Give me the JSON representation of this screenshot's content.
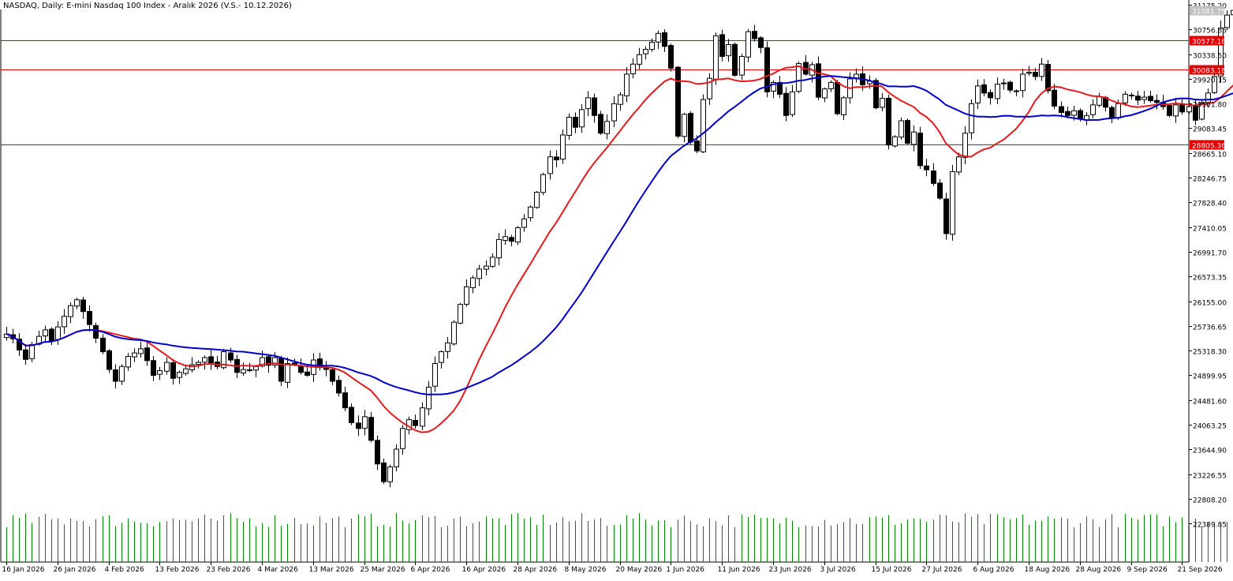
{
  "chart_data": {
    "type": "candlestick",
    "title": "NASDAQ, Daily:  E-mini Nasdaq 100 Index - Aralık 2026 (V.S.- 10.12.2026)",
    "ylim": [
      22180,
      31175.2
    ],
    "y_ticks": [
      "31175.20",
      "30756.85",
      "30338.50",
      "29920.15",
      "29501.80",
      "29083.45",
      "28665.10",
      "28246.75",
      "27828.40",
      "27410.05",
      "26991.70",
      "26573.35",
      "26155.00",
      "25736.65",
      "25318.30",
      "24899.95",
      "24481.60",
      "24063.25",
      "23644.90",
      "23226.55",
      "22808.20",
      "22389.85"
    ],
    "x_labels": [
      "16 Jan 2026",
      "26 Jan 2026",
      "4 Feb 2026",
      "13 Feb 2026",
      "23 Feb 2026",
      "4 Mar 2026",
      "13 Mar 2026",
      "25 Mar 2026",
      "6 Apr 2026",
      "16 Apr 2026",
      "28 Apr 2026",
      "8 May 2026",
      "20 May 2026",
      "1 Jun 2026",
      "11 Jun 2026",
      "23 Jun 2026",
      "3 Jul 2026",
      "15 Jul 2026",
      "27 Jul 2026",
      "6 Aug 2026",
      "18 Aug 2026",
      "28 Aug 2026",
      "9 Sep 2026",
      "21 Sep 2026"
    ],
    "x_label_bars": [
      0,
      8,
      16,
      24,
      32,
      40,
      48,
      56,
      64,
      72,
      80,
      88,
      96,
      104,
      112,
      120,
      128,
      136,
      144,
      152,
      160,
      168,
      176,
      184
    ],
    "levels": [
      {
        "value": 30577.16,
        "label": "30577.16"
      },
      {
        "value": 30083.18,
        "label": "30083.18"
      },
      {
        "value": 28805.36,
        "label": "28805.36"
      }
    ],
    "current_price": {
      "value": 31081.75,
      "label": "31081.75"
    },
    "closes": [
      25600,
      25520,
      25330,
      25170,
      25420,
      25560,
      25670,
      25490,
      25720,
      25900,
      26080,
      26180,
      25980,
      25760,
      25530,
      25300,
      25000,
      24800,
      25050,
      25220,
      25280,
      25350,
      25150,
      24900,
      24980,
      25120,
      24850,
      24950,
      25010,
      25080,
      25120,
      25200,
      25110,
      25050,
      25300,
      25160,
      24950,
      25000,
      24990,
      25050,
      25200,
      25070,
      25200,
      24800,
      25100,
      25080,
      24950,
      24900,
      25160,
      25050,
      25000,
      24800,
      24600,
      24350,
      24100,
      24000,
      24200,
      23800,
      23400,
      23100,
      23350,
      23650,
      24000,
      24150,
      24050,
      24350,
      24700,
      25100,
      25300,
      25450,
      25800,
      26100,
      26400,
      26550,
      26700,
      26750,
      26900,
      27200,
      27250,
      27170,
      27400,
      27550,
      27750,
      28000,
      28300,
      28600,
      28550,
      28970,
      29270,
      29100,
      29400,
      29600,
      29300,
      29000,
      29200,
      29500,
      29650,
      30000,
      30170,
      30330,
      30420,
      30540,
      30690,
      30470,
      30100,
      28950,
      29320,
      28850,
      28700,
      29570,
      29930,
      30650,
      30300,
      30500,
      29980,
      30300,
      30720,
      30600,
      30450,
      29700,
      29860,
      29660,
      29300,
      29700,
      30180,
      30000,
      30160,
      29610,
      29750,
      29860,
      29330,
      29600,
      29920,
      30000,
      29820,
      29880,
      29430,
      29590,
      28800,
      28940,
      29210,
      28830,
      29020,
      28450,
      28380,
      28150,
      27900,
      27300,
      28350,
      28600,
      29000,
      29500,
      29800,
      29680,
      29600,
      29830,
      29850,
      29730,
      29710,
      30000,
      30030,
      29960,
      30170,
      29720,
      29460,
      29350,
      29300,
      29380,
      29240,
      29300,
      29480,
      29620,
      29440,
      29260,
      29500,
      29660,
      29640,
      29560,
      29610,
      29550,
      29520,
      29450,
      29300,
      29480,
      29360,
      29450,
      29220,
      29510,
      29680,
      29960,
      30780,
      31000,
      31080
    ],
    "volume_label": "Volume"
  }
}
